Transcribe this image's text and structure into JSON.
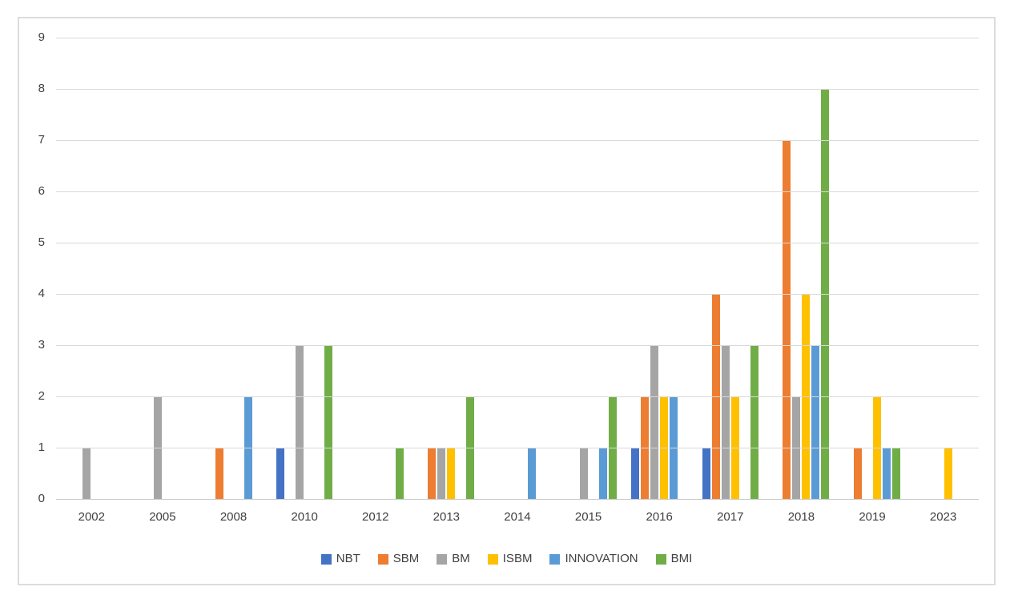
{
  "chart_data": {
    "type": "bar",
    "title": "",
    "categories": [
      "2002",
      "2005",
      "2008",
      "2010",
      "2012",
      "2013",
      "2014",
      "2015",
      "2016",
      "2017",
      "2018",
      "2019",
      "2023"
    ],
    "series": [
      {
        "name": "NBT",
        "color": "#4472C4",
        "values": [
          0,
          0,
          0,
          1,
          0,
          0,
          0,
          0,
          1,
          1,
          0,
          0,
          0
        ]
      },
      {
        "name": "SBM",
        "color": "#ED7D31",
        "values": [
          0,
          0,
          1,
          0,
          0,
          1,
          0,
          0,
          2,
          4,
          7,
          1,
          0
        ]
      },
      {
        "name": "BM",
        "color": "#A5A5A5",
        "values": [
          1,
          2,
          0,
          3,
          0,
          1,
          0,
          1,
          3,
          3,
          2,
          0,
          0
        ]
      },
      {
        "name": "ISBM",
        "color": "#FFC000",
        "values": [
          0,
          0,
          0,
          0,
          0,
          1,
          0,
          0,
          2,
          2,
          4,
          2,
          1
        ]
      },
      {
        "name": "INNOVATION",
        "color": "#5B9BD5",
        "values": [
          0,
          0,
          2,
          0,
          0,
          0,
          1,
          1,
          2,
          0,
          3,
          1,
          0
        ]
      },
      {
        "name": "BMI",
        "color": "#70AD47",
        "values": [
          0,
          0,
          0,
          3,
          1,
          2,
          0,
          2,
          0,
          3,
          8,
          1,
          0
        ]
      }
    ],
    "y_axis": {
      "min": 0,
      "max": 9,
      "step": 1,
      "tick_labels": [
        "0",
        "1",
        "2",
        "3",
        "4",
        "5",
        "6",
        "7",
        "8",
        "9"
      ]
    },
    "xlabel": "",
    "ylabel": "",
    "grid": true,
    "legend_position": "bottom",
    "colors": {
      "gridline": "#d9d9d9",
      "axis_line": "#c6c6c6",
      "text": "#404040",
      "frame_border": "#dcdcdc",
      "background": "#ffffff"
    }
  }
}
